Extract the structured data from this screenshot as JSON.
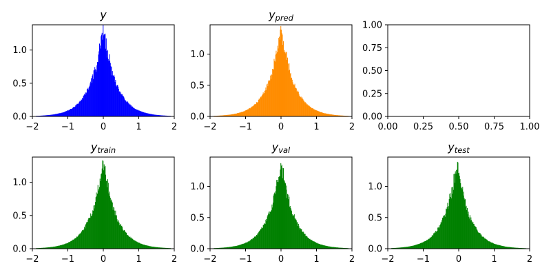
{
  "chart_data": [
    {
      "type": "histogram",
      "title": "y",
      "title_sub": "",
      "color": "#0000ff",
      "xlim": [
        -2,
        2
      ],
      "ylim": [
        0,
        1.38
      ],
      "xticks": [
        "−2",
        "−1",
        "0",
        "1",
        "2"
      ],
      "yticks": [
        "0.0",
        "0.5",
        "1.0"
      ],
      "distribution": {
        "shape": "laplace-like",
        "center": 0.0,
        "peak_density": 1.33,
        "support": [
          -1.9,
          1.9
        ]
      }
    },
    {
      "type": "histogram",
      "title": "y",
      "title_sub": "pred",
      "color": "#ff8c00",
      "xlim": [
        -2,
        2
      ],
      "ylim": [
        0,
        1.47
      ],
      "xticks": [
        "−2",
        "−1",
        "0",
        "1",
        "2"
      ],
      "yticks": [
        "0.0",
        "0.5",
        "1.0"
      ],
      "distribution": {
        "shape": "laplace-like",
        "center": 0.0,
        "peak_density": 1.42,
        "support": [
          -1.9,
          1.9
        ]
      }
    },
    {
      "type": "empty",
      "title": "",
      "title_sub": "",
      "xlim": [
        0,
        1
      ],
      "ylim": [
        0,
        1
      ],
      "xticks": [
        "0.00",
        "0.25",
        "0.50",
        "0.75",
        "1.00"
      ],
      "yticks": [
        "0.00",
        "0.25",
        "0.50",
        "0.75",
        "1.00"
      ]
    },
    {
      "type": "histogram",
      "title": "y",
      "title_sub": "train",
      "color": "#008000",
      "xlim": [
        -2,
        2
      ],
      "ylim": [
        0,
        1.38
      ],
      "xticks": [
        "−2",
        "−1",
        "0",
        "1",
        "2"
      ],
      "yticks": [
        "0.0",
        "0.5",
        "1.0"
      ],
      "distribution": {
        "shape": "laplace-like",
        "center": 0.0,
        "peak_density": 1.33,
        "support": [
          -1.9,
          1.9
        ]
      }
    },
    {
      "type": "histogram",
      "title": "y",
      "title_sub": "val",
      "color": "#008000",
      "xlim": [
        -2,
        2
      ],
      "ylim": [
        0,
        1.47
      ],
      "xticks": [
        "−2",
        "−1",
        "0",
        "1",
        "2"
      ],
      "yticks": [
        "0.0",
        "0.5",
        "1.0"
      ],
      "distribution": {
        "shape": "laplace-like",
        "center": 0.0,
        "peak_density": 1.4,
        "support": [
          -1.9,
          1.9
        ]
      }
    },
    {
      "type": "histogram",
      "title": "y",
      "title_sub": "test",
      "color": "#008000",
      "xlim": [
        -2,
        2
      ],
      "ylim": [
        0,
        1.47
      ],
      "xticks": [
        "−2",
        "−1",
        "0",
        "1",
        "2"
      ],
      "yticks": [
        "0.0",
        "0.5",
        "1.0"
      ],
      "distribution": {
        "shape": "laplace-like",
        "center": -0.05,
        "peak_density": 1.38,
        "support": [
          -1.9,
          1.9
        ]
      }
    }
  ]
}
